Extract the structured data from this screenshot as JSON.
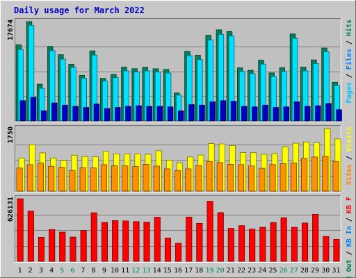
{
  "chart_data": {
    "type": "bar",
    "title": "Daily usage for March 2022",
    "categories": [
      "1",
      "2",
      "3",
      "4",
      "5",
      "6",
      "7",
      "8",
      "9",
      "10",
      "11",
      "12",
      "13",
      "14",
      "15",
      "16",
      "17",
      "18",
      "19",
      "20",
      "21",
      "22",
      "23",
      "24",
      "25",
      "26",
      "27",
      "28",
      "29",
      "30",
      "31"
    ],
    "weekend_days": [
      "5",
      "6",
      "12",
      "13",
      "19",
      "20",
      "26",
      "27"
    ],
    "panels": [
      {
        "name": "pages-files-hits",
        "ymax_label": "17674",
        "ylim": [
          0,
          17674
        ],
        "legend": [
          {
            "text": "Hits",
            "color": "#00805c"
          },
          {
            "text": " / ",
            "color": "#000000"
          },
          {
            "text": "Files",
            "color": "#0080ff"
          },
          {
            "text": " / ",
            "color": "#000000"
          },
          {
            "text": "Pages",
            "color": "#00c0ff"
          }
        ],
        "series": [
          {
            "name": "Hits",
            "color": "#00805c",
            "values": [
              13540,
              17674,
              6540,
              13260,
              11780,
              10080,
              8120,
              12460,
              7580,
              8260,
              9560,
              9300,
              9540,
              9280,
              9160,
              4980,
              12380,
              11680,
              15240,
              16200,
              15900,
              9440,
              9000,
              10800,
              8540,
              9460,
              15460,
              9580,
              10860,
              12980,
              6880
            ]
          },
          {
            "name": "Files",
            "color": "#00e0ff",
            "values": [
              12700,
              17000,
              5800,
              12500,
              11000,
              9500,
              7600,
              11700,
              7100,
              7700,
              8900,
              8700,
              8900,
              8700,
              8500,
              4600,
              11600,
              10900,
              14400,
              15400,
              15100,
              8800,
              8400,
              10100,
              7900,
              8800,
              14700,
              8900,
              10200,
              12300,
              6300
            ]
          },
          {
            "name": "Pages",
            "color": "#0000c0",
            "values": [
              3600,
              4200,
              1800,
              3200,
              2800,
              2600,
              2400,
              3000,
              2200,
              2400,
              2600,
              2700,
              2600,
              2600,
              2500,
              1800,
              2900,
              2800,
              3400,
              3600,
              3500,
              2600,
              2500,
              2800,
              2400,
              2500,
              3400,
              2600,
              2700,
              3100,
              2000
            ]
          }
        ]
      },
      {
        "name": "visits-sites",
        "ymax_label": "1750",
        "ylim": [
          0,
          1750
        ],
        "legend": [
          {
            "text": "Visits",
            "color": "#ffff00"
          },
          {
            "text": " / ",
            "color": "#000000"
          },
          {
            "text": "Sites",
            "color": "#ff8000"
          }
        ],
        "series": [
          {
            "name": "Visits",
            "color": "#ffff00",
            "values": [
              920,
              1300,
              1070,
              925,
              860,
              1005,
              970,
              960,
              1110,
              1040,
              1040,
              1040,
              1030,
              1130,
              865,
              795,
              955,
              1010,
              1330,
              1320,
              1275,
              1080,
              1075,
              1030,
              1050,
              1240,
              1340,
              1375,
              1350,
              1750,
              1460
            ]
          },
          {
            "name": "Sites",
            "color": "#ff9000",
            "values": [
              645,
              740,
              790,
              695,
              665,
              580,
              655,
              650,
              740,
              710,
              705,
              690,
              750,
              700,
              625,
              580,
              625,
              715,
              830,
              800,
              750,
              740,
              705,
              640,
              745,
              770,
              790,
              920,
              955,
              970,
              830
            ]
          }
        ]
      },
      {
        "name": "kb-f-in-out",
        "ymax_label": "626131",
        "ylim": [
          0,
          626131
        ],
        "legend": [
          {
            "text": "KB F",
            "color": "#ff0000"
          },
          {
            "text": " / ",
            "color": "#000000"
          },
          {
            "text": "KB In",
            "color": "#0080ff"
          },
          {
            "text": " / ",
            "color": "#000000"
          },
          {
            "text": "KB Out",
            "color": "#00805c"
          }
        ],
        "series": [
          {
            "name": "KB F",
            "color": "#ff0000",
            "values": [
              626131,
              503000,
              241000,
              318000,
              292000,
              243000,
              309000,
              486000,
              389000,
              408000,
              404000,
              398000,
              392000,
              441000,
              233000,
              180000,
              443000,
              380000,
              602000,
              488000,
              330000,
              357000,
              323000,
              341000,
              388000,
              436000,
              341000,
              383000,
              470000,
              249000,
              220000
            ]
          }
        ]
      }
    ]
  }
}
